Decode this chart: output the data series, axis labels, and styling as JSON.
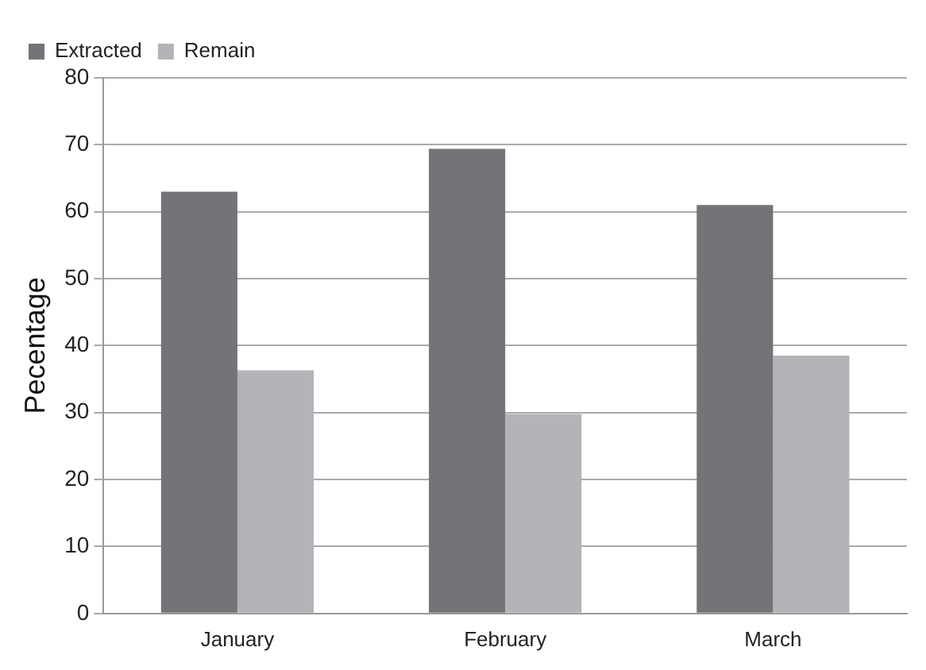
{
  "chart_data": {
    "type": "bar",
    "ylabel": "Pecentage",
    "categories": [
      "January",
      "February",
      "March"
    ],
    "series": [
      {
        "name": "Extracted",
        "color": "#737378",
        "values": [
          63,
          69.4,
          61
        ]
      },
      {
        "name": "Remain",
        "color": "#b4b4b8",
        "values": [
          36.3,
          29.8,
          38.5
        ]
      }
    ],
    "ylim": [
      0,
      80
    ],
    "yticks": [
      0,
      10,
      20,
      30,
      40,
      50,
      60,
      70,
      80
    ],
    "grid": "y",
    "legend": "top left"
  }
}
